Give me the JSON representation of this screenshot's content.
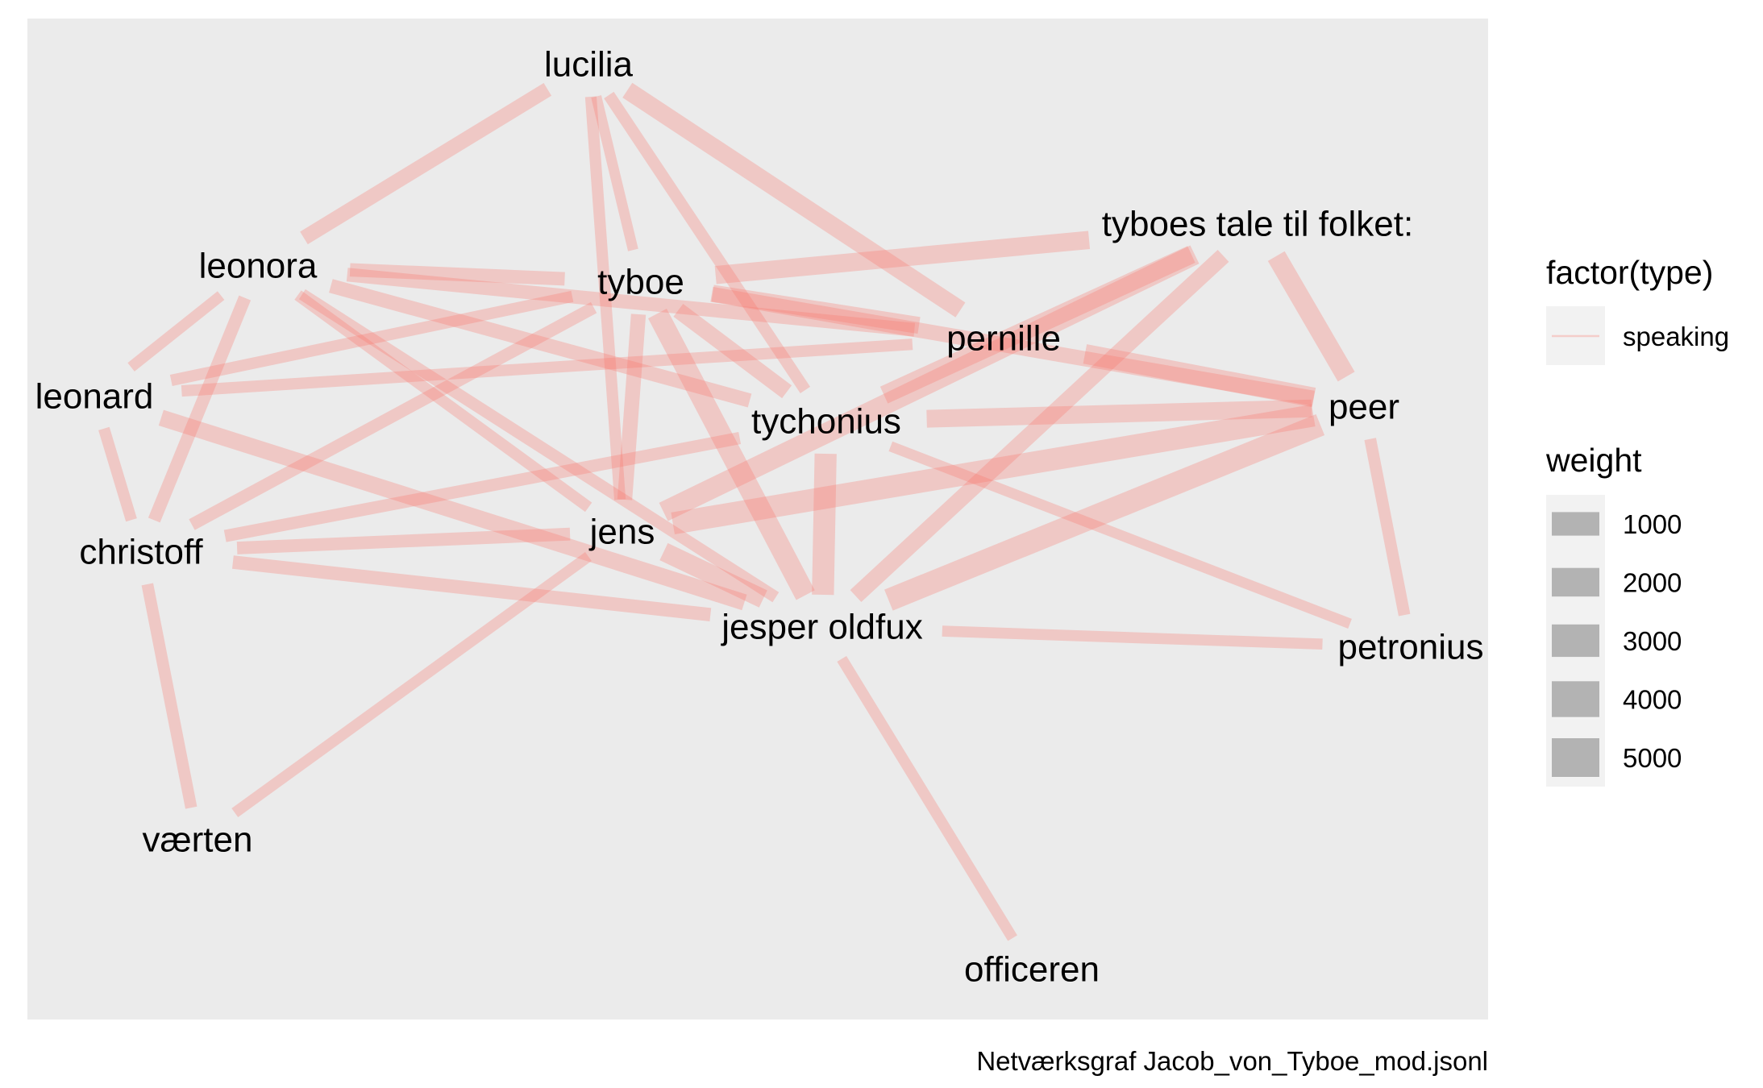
{
  "chart_data": {
    "type": "network",
    "caption": "Netværksgraf Jacob_von_Tyboe_mod.jsonl",
    "edge_color": "#F8766D",
    "panel_background": "#EBEBEB",
    "nodes": [
      {
        "id": "lucilia",
        "label": "lucilia"
      },
      {
        "id": "leonora",
        "label": "leonora"
      },
      {
        "id": "tyboe",
        "label": "tyboe"
      },
      {
        "id": "tyboes_tale",
        "label": "tyboes tale til folket:"
      },
      {
        "id": "pernille",
        "label": "pernille"
      },
      {
        "id": "leonard",
        "label": "leonard"
      },
      {
        "id": "peer",
        "label": "peer"
      },
      {
        "id": "tychonius",
        "label": "tychonius"
      },
      {
        "id": "christoff",
        "label": "christoff"
      },
      {
        "id": "jens",
        "label": "jens"
      },
      {
        "id": "jesper",
        "label": "jesper oldfux"
      },
      {
        "id": "petronius",
        "label": "petronius"
      },
      {
        "id": "vaerten",
        "label": "værten"
      },
      {
        "id": "officeren",
        "label": "officeren"
      }
    ],
    "edges": [
      {
        "source": "lucilia",
        "target": "leonora",
        "type": "speaking",
        "weight": 1800
      },
      {
        "source": "lucilia",
        "target": "tyboe",
        "type": "speaking",
        "weight": 700
      },
      {
        "source": "lucilia",
        "target": "jens",
        "type": "speaking",
        "weight": 900
      },
      {
        "source": "lucilia",
        "target": "tychonius",
        "type": "speaking",
        "weight": 1000
      },
      {
        "source": "lucilia",
        "target": "pernille",
        "type": "speaking",
        "weight": 2800
      },
      {
        "source": "leonora",
        "target": "tyboe",
        "type": "speaking",
        "weight": 1400
      },
      {
        "source": "leonora",
        "target": "leonard",
        "type": "speaking",
        "weight": 800
      },
      {
        "source": "leonora",
        "target": "christoff",
        "type": "speaking",
        "weight": 1200
      },
      {
        "source": "leonora",
        "target": "pernille",
        "type": "speaking",
        "weight": 1500
      },
      {
        "source": "leonora",
        "target": "tychonius",
        "type": "speaking",
        "weight": 1600
      },
      {
        "source": "leonora",
        "target": "jens",
        "type": "speaking",
        "weight": 900
      },
      {
        "source": "leonora",
        "target": "jesper",
        "type": "speaking",
        "weight": 1000
      },
      {
        "source": "tyboe",
        "target": "tyboes_tale",
        "type": "speaking",
        "weight": 3000
      },
      {
        "source": "tyboe",
        "target": "leonard",
        "type": "speaking",
        "weight": 900
      },
      {
        "source": "tyboe",
        "target": "christoff",
        "type": "speaking",
        "weight": 1100
      },
      {
        "source": "tyboe",
        "target": "pernille",
        "type": "speaking",
        "weight": 2500
      },
      {
        "source": "tyboe",
        "target": "peer",
        "type": "speaking",
        "weight": 1900
      },
      {
        "source": "tyboe",
        "target": "tychonius",
        "type": "speaking",
        "weight": 2200
      },
      {
        "source": "tyboe",
        "target": "jens",
        "type": "speaking",
        "weight": 1800
      },
      {
        "source": "tyboe",
        "target": "jesper",
        "type": "speaking",
        "weight": 4200
      },
      {
        "source": "tyboes_tale",
        "target": "tychonius",
        "type": "speaking",
        "weight": 3100
      },
      {
        "source": "tyboes_tale",
        "target": "jesper",
        "type": "speaking",
        "weight": 2300
      },
      {
        "source": "tyboes_tale",
        "target": "peer",
        "type": "speaking",
        "weight": 3500
      },
      {
        "source": "tyboes_tale",
        "target": "jens",
        "type": "speaking",
        "weight": 3900
      },
      {
        "source": "pernille",
        "target": "leonard",
        "type": "speaking",
        "weight": 900
      },
      {
        "source": "pernille",
        "target": "peer",
        "type": "speaking",
        "weight": 3700
      },
      {
        "source": "tychonius",
        "target": "peer",
        "type": "speaking",
        "weight": 2800
      },
      {
        "source": "tychonius",
        "target": "christoff",
        "type": "speaking",
        "weight": 1100
      },
      {
        "source": "tychonius",
        "target": "jesper",
        "type": "speaking",
        "weight": 4700
      },
      {
        "source": "tychonius",
        "target": "petronius",
        "type": "speaking",
        "weight": 700
      },
      {
        "source": "leonard",
        "target": "christoff",
        "type": "speaking",
        "weight": 900
      },
      {
        "source": "leonard",
        "target": "jesper",
        "type": "speaking",
        "weight": 2300
      },
      {
        "source": "christoff",
        "target": "jens",
        "type": "speaking",
        "weight": 1200
      },
      {
        "source": "christoff",
        "target": "jesper",
        "type": "speaking",
        "weight": 1400
      },
      {
        "source": "christoff",
        "target": "vaerten",
        "type": "speaking",
        "weight": 1000
      },
      {
        "source": "jens",
        "target": "peer",
        "type": "speaking",
        "weight": 4800
      },
      {
        "source": "jens",
        "target": "jesper",
        "type": "speaking",
        "weight": 3300
      },
      {
        "source": "jens",
        "target": "vaerten",
        "type": "speaking",
        "weight": 800
      },
      {
        "source": "jesper",
        "target": "peer",
        "type": "speaking",
        "weight": 5000
      },
      {
        "source": "jesper",
        "target": "petronius",
        "type": "speaking",
        "weight": 800
      },
      {
        "source": "jesper",
        "target": "officeren",
        "type": "speaking",
        "weight": 800
      },
      {
        "source": "peer",
        "target": "petronius",
        "type": "speaking",
        "weight": 1000
      }
    ],
    "legend": {
      "type_title": "factor(type)",
      "type_entries": [
        "speaking"
      ],
      "weight_title": "weight",
      "weight_entries": [
        1000,
        2000,
        3000,
        4000,
        5000
      ],
      "placement": "right"
    }
  }
}
